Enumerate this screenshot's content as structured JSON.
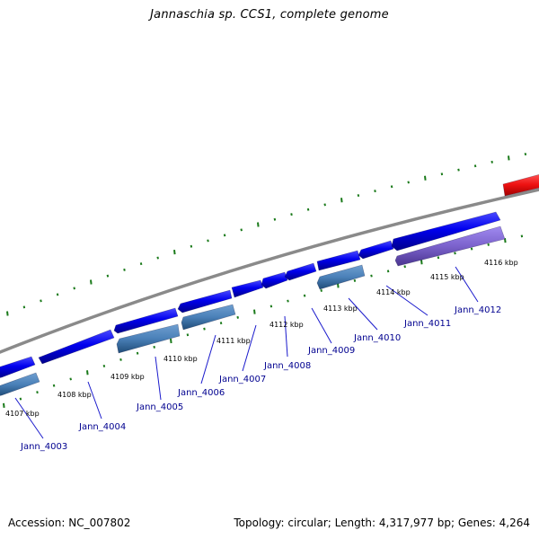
{
  "title": "Jannaschia sp. CCS1, complete genome",
  "footer": {
    "accession": "Accession: NC_007802",
    "topology": "Topology: circular; Length: 4,317,977 bp; Genes: 4,264"
  },
  "colors": {
    "background": "#ffffff",
    "backbone": "#8a8a8a",
    "tick": "#1a7a1a",
    "forward_gene": "#0000ee",
    "reverse_gene": "#4a80b8",
    "reverse_gene_alt": "#7b62cc",
    "highlight_gene": "#ee1111",
    "gene_label": "#00008f"
  },
  "scale_labels": [
    "4107 kbp",
    "4108 kbp",
    "4109 kbp",
    "4110 kbp",
    "4111 kbp",
    "4112 kbp",
    "4113 kbp",
    "4114 kbp",
    "4115 kbp",
    "4116 kbp"
  ],
  "genes": [
    {
      "label": "Jann_4003"
    },
    {
      "label": "Jann_4004"
    },
    {
      "label": "Jann_4005"
    },
    {
      "label": "Jann_4006"
    },
    {
      "label": "Jann_4007"
    },
    {
      "label": "Jann_4008"
    },
    {
      "label": "Jann_4009"
    },
    {
      "label": "Jann_4010"
    },
    {
      "label": "Jann_4011"
    },
    {
      "label": "Jann_4012"
    }
  ]
}
